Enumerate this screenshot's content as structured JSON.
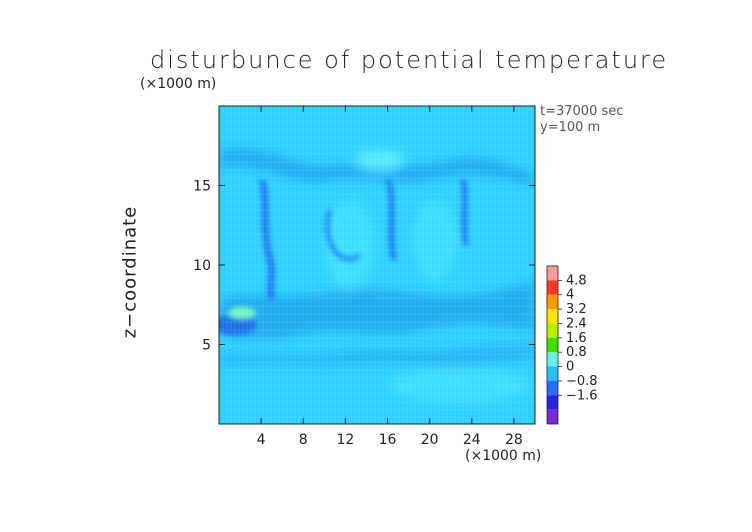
{
  "chart_data": {
    "type": "heatmap",
    "title": "disturbunce of potential temperature",
    "ylabel": "z−coordinate",
    "y_unit": "(×1000 m)",
    "x_unit": "(×1000 m)",
    "annotations": [
      "t=37000 sec",
      "y=100 m"
    ],
    "xlim": [
      0,
      30
    ],
    "ylim": [
      0,
      20
    ],
    "x_ticks": [
      4,
      8,
      12,
      16,
      20,
      24,
      28
    ],
    "y_ticks": [
      5,
      10,
      15
    ],
    "colorbar": {
      "levels": [
        "4.8",
        "4",
        "3.2",
        "2.4",
        "1.6",
        "0.8",
        "0",
        "−0.8",
        "−1.6"
      ],
      "colors": [
        "#ff9a9a",
        "#ff3a1a",
        "#ff9a00",
        "#ffe600",
        "#b8f000",
        "#3fe000",
        "#6af0e8",
        "#26c0ff",
        "#2a6cff",
        "#2a22d8",
        "#7a2ad0"
      ]
    },
    "background_color": "#2bd0ff"
  }
}
